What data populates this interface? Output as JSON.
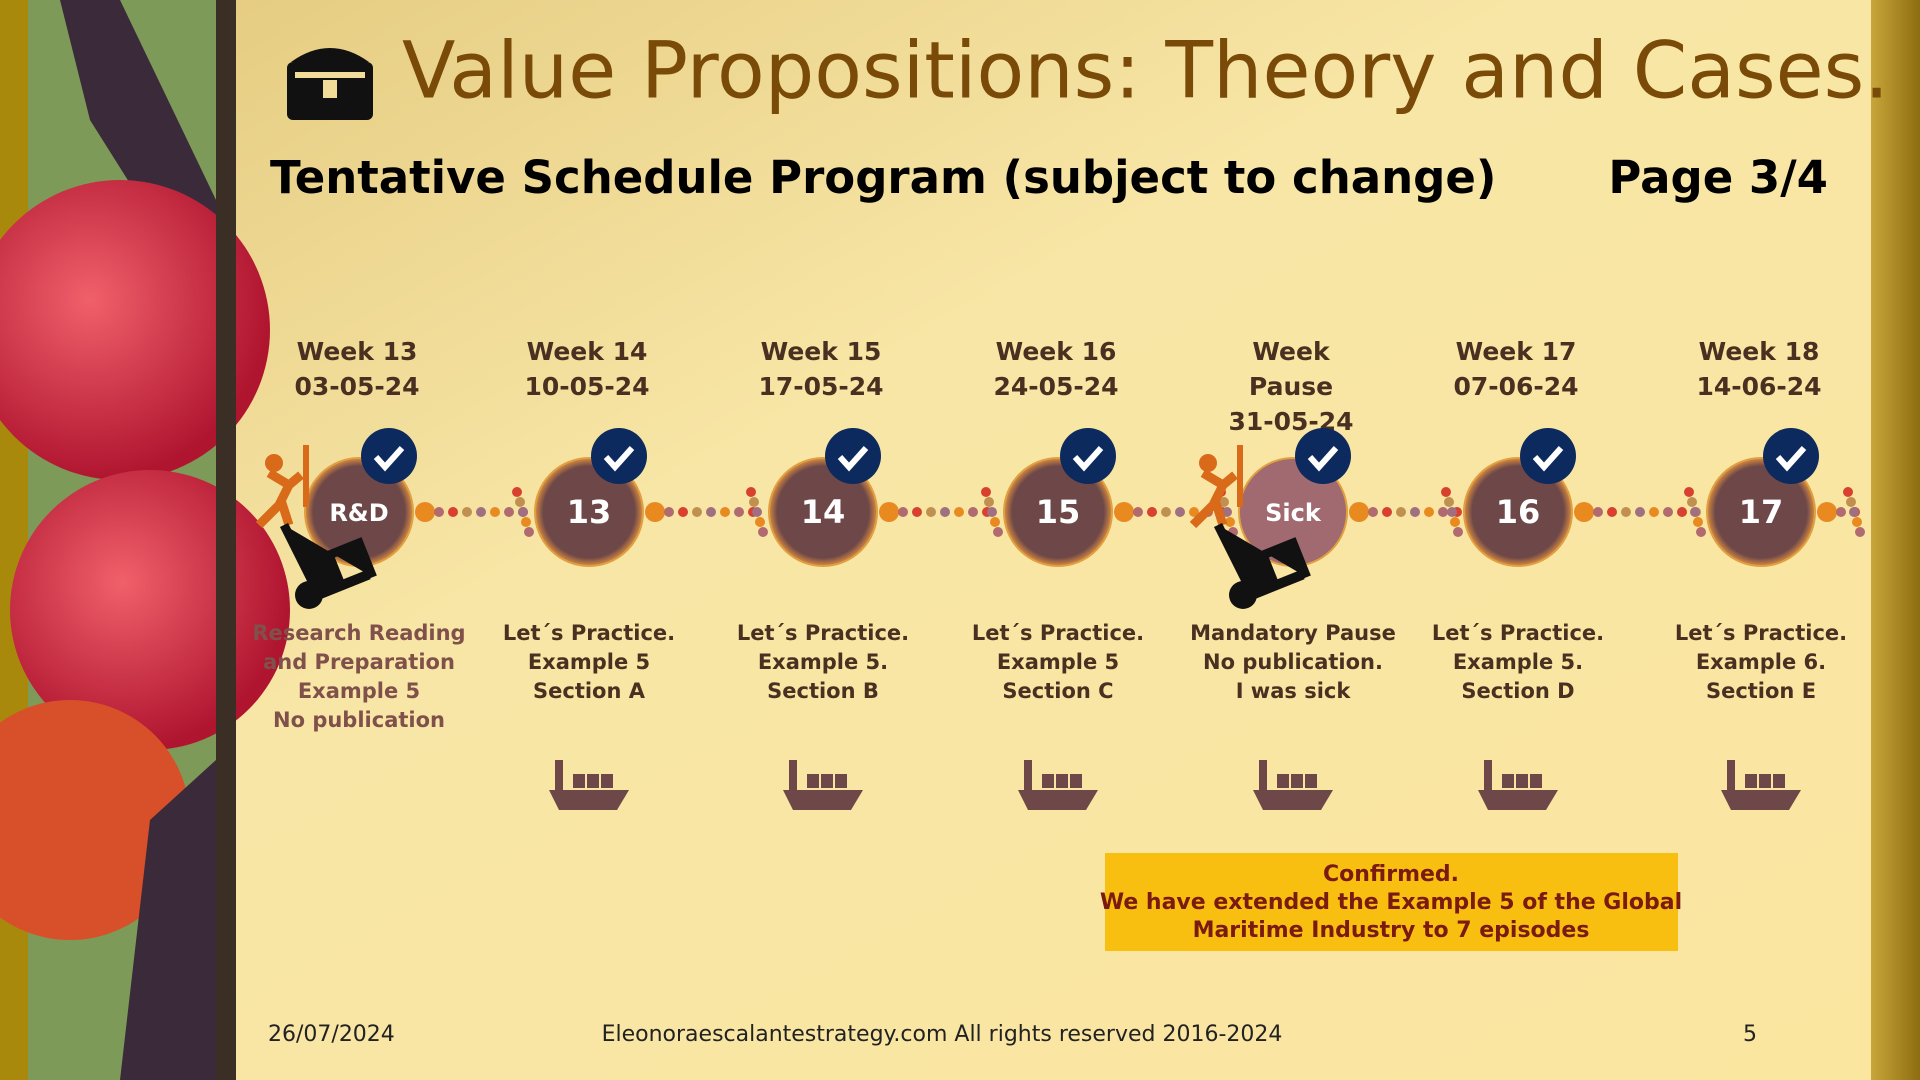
{
  "header": {
    "title": "Value Propositions: Theory and Cases.",
    "subtitle": "Tentative Schedule Program (subject to change)",
    "page": "Page 3/4"
  },
  "timeline": [
    {
      "week": [
        "Week 13",
        "03-05-24"
      ],
      "circle": "R&D",
      "description": [
        "Research Reading",
        "and Preparation",
        "Example 5",
        "No publication"
      ]
    },
    {
      "week": [
        "Week 14",
        "10-05-24"
      ],
      "circle": "13",
      "description": [
        "Let´s Practice.",
        "Example 5",
        "Section A"
      ]
    },
    {
      "week": [
        "Week 15",
        "17-05-24"
      ],
      "circle": "14",
      "description": [
        "Let´s Practice.",
        "Example 5.",
        "Section B"
      ]
    },
    {
      "week": [
        "Week 16",
        "24-05-24"
      ],
      "circle": "15",
      "description": [
        "Let´s Practice.",
        "Example 5",
        "Section C"
      ]
    },
    {
      "week": [
        "Week",
        "Pause",
        "31-05-24"
      ],
      "circle": "Sick",
      "description": [
        "Mandatory Pause",
        "No publication.",
        "I was sick"
      ]
    },
    {
      "week": [
        "Week 17",
        "07-06-24"
      ],
      "circle": "16",
      "description": [
        "Let´s Practice.",
        "Example 5.",
        "Section D"
      ]
    },
    {
      "week": [
        "Week 18",
        "14-06-24"
      ],
      "circle": "17",
      "description": [
        "Let´s Practice.",
        "Example 6.",
        "Section E"
      ]
    }
  ],
  "note": [
    "Confirmed.",
    "We have extended the Example 5 of the Global",
    "Maritime Industry to 7 episodes"
  ],
  "footer": {
    "date": "26/07/2024",
    "site": "Eleonoraescalantestrategy.com  All rights reserved 2016-2024",
    "number": "5"
  }
}
